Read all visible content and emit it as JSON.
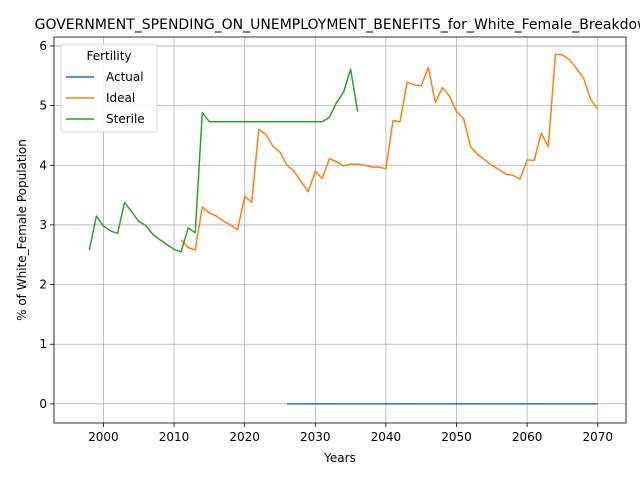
{
  "chart_data": {
    "type": "line",
    "title": "GOVERNMENT_SPENDING_ON_UNEMPLOYMENT_BENEFITS_for_White_Female_Breakdown",
    "xlabel": "Years",
    "ylabel": "% of White_Female Population",
    "xlim": [
      1993,
      2074
    ],
    "ylim": [
      -0.32,
      6.15
    ],
    "xticks": [
      2000,
      2010,
      2020,
      2030,
      2040,
      2050,
      2060,
      2070
    ],
    "yticks": [
      0,
      1,
      2,
      3,
      4,
      5,
      6
    ],
    "grid": true,
    "legend": {
      "title": "Fertility",
      "position": "top-left"
    },
    "series": [
      {
        "name": "Actual",
        "color": "#1f77b4",
        "points": [
          [
            2026,
            0.0
          ],
          [
            2070,
            0.0
          ]
        ]
      },
      {
        "name": "Ideal",
        "color": "#ff7f0e",
        "points": [
          [
            2011,
            2.75
          ],
          [
            2012,
            2.62
          ],
          [
            2013,
            2.58
          ],
          [
            2014,
            3.3
          ],
          [
            2015,
            3.2
          ],
          [
            2016,
            3.15
          ],
          [
            2017,
            3.06
          ],
          [
            2018,
            3.0
          ],
          [
            2019,
            2.92
          ],
          [
            2020,
            3.48
          ],
          [
            2021,
            3.38
          ],
          [
            2022,
            4.6
          ],
          [
            2023,
            4.52
          ],
          [
            2024,
            4.32
          ],
          [
            2025,
            4.22
          ],
          [
            2026,
            4.0
          ],
          [
            2027,
            3.9
          ],
          [
            2028,
            3.72
          ],
          [
            2029,
            3.56
          ],
          [
            2030,
            3.9
          ],
          [
            2031,
            3.78
          ],
          [
            2032,
            4.11
          ],
          [
            2033,
            4.06
          ],
          [
            2034,
            3.99
          ],
          [
            2035,
            4.02
          ],
          [
            2036,
            4.02
          ],
          [
            2037,
            4.0
          ],
          [
            2038,
            3.97
          ],
          [
            2039,
            3.97
          ],
          [
            2040,
            3.94
          ],
          [
            2041,
            4.75
          ],
          [
            2042,
            4.73
          ],
          [
            2043,
            5.39
          ],
          [
            2044,
            5.35
          ],
          [
            2045,
            5.33
          ],
          [
            2046,
            5.64
          ],
          [
            2047,
            5.05
          ],
          [
            2048,
            5.3
          ],
          [
            2049,
            5.16
          ],
          [
            2050,
            4.9
          ],
          [
            2051,
            4.78
          ],
          [
            2052,
            4.31
          ],
          [
            2053,
            4.18
          ],
          [
            2054,
            4.09
          ],
          [
            2055,
            4.0
          ],
          [
            2056,
            3.93
          ],
          [
            2057,
            3.85
          ],
          [
            2058,
            3.83
          ],
          [
            2059,
            3.77
          ],
          [
            2060,
            4.09
          ],
          [
            2061,
            4.08
          ],
          [
            2062,
            4.54
          ],
          [
            2063,
            4.31
          ],
          [
            2064,
            5.86
          ],
          [
            2065,
            5.85
          ],
          [
            2066,
            5.77
          ],
          [
            2067,
            5.62
          ],
          [
            2068,
            5.46
          ],
          [
            2069,
            5.1
          ],
          [
            2070,
            4.94
          ]
        ]
      },
      {
        "name": "Sterile",
        "color": "#2ca02c",
        "points": [
          [
            1998,
            2.58
          ],
          [
            1999,
            3.15
          ],
          [
            2000,
            2.98
          ],
          [
            2001,
            2.9
          ],
          [
            2002,
            2.86
          ],
          [
            2003,
            3.38
          ],
          [
            2004,
            3.22
          ],
          [
            2005,
            3.06
          ],
          [
            2006,
            2.99
          ],
          [
            2007,
            2.84
          ],
          [
            2008,
            2.75
          ],
          [
            2009,
            2.67
          ],
          [
            2010,
            2.59
          ],
          [
            2011,
            2.55
          ],
          [
            2012,
            2.95
          ],
          [
            2013,
            2.87
          ],
          [
            2014,
            4.88
          ],
          [
            2015,
            4.73
          ],
          [
            2016,
            4.73
          ],
          [
            2017,
            4.73
          ],
          [
            2018,
            4.73
          ],
          [
            2019,
            4.73
          ],
          [
            2020,
            4.73
          ],
          [
            2021,
            4.73
          ],
          [
            2022,
            4.73
          ],
          [
            2023,
            4.73
          ],
          [
            2024,
            4.73
          ],
          [
            2025,
            4.73
          ],
          [
            2026,
            4.73
          ],
          [
            2027,
            4.73
          ],
          [
            2028,
            4.73
          ],
          [
            2029,
            4.73
          ],
          [
            2030,
            4.73
          ],
          [
            2031,
            4.73
          ],
          [
            2032,
            4.8
          ],
          [
            2033,
            5.05
          ],
          [
            2034,
            5.22
          ],
          [
            2035,
            5.61
          ],
          [
            2036,
            4.9
          ]
        ]
      }
    ]
  }
}
